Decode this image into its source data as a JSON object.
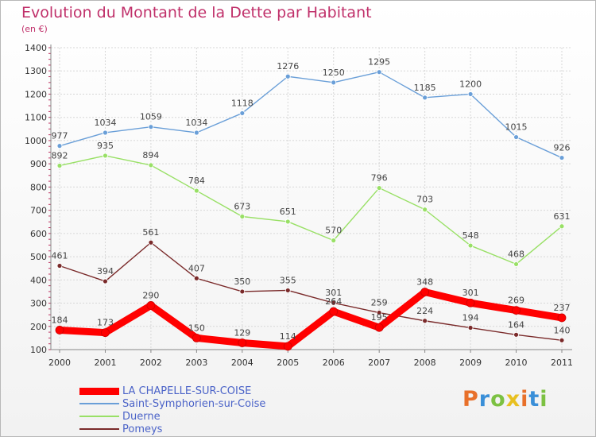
{
  "title": "Evolution du Montant de la Dette par Habitant",
  "unit_label": "(en €)",
  "brand": "Proxiti",
  "brand_colors": [
    "#e8702a",
    "#3a8fd8",
    "#7cc142",
    "#e8c020"
  ],
  "chart_data": {
    "type": "line",
    "categories": [
      "2000",
      "2001",
      "2002",
      "2003",
      "2004",
      "2005",
      "2006",
      "2007",
      "2008",
      "2009",
      "2010",
      "2011"
    ],
    "ylim": [
      100,
      1400
    ],
    "yticks": [
      100,
      200,
      300,
      400,
      500,
      600,
      700,
      800,
      900,
      1000,
      1100,
      1200,
      1300,
      1400
    ],
    "ytick_labels": [
      "100",
      "200",
      "300",
      "400",
      "500",
      "600",
      "700",
      "800",
      "900",
      "1000",
      "1100",
      "1200",
      "1300",
      "1400"
    ],
    "grid": true,
    "legend_position": "bottom-left",
    "series": [
      {
        "name": "LA CHAPELLE-SUR-COISE",
        "color": "#ff0000",
        "bold": true,
        "values": [
          184,
          173,
          290,
          150,
          129,
          114,
          264,
          195,
          348,
          301,
          269,
          237
        ]
      },
      {
        "name": "Saint-Symphorien-sur-Coise",
        "color": "#6a9fd8",
        "bold": false,
        "values": [
          977,
          1034,
          1059,
          1034,
          1118,
          1276,
          1250,
          1295,
          1185,
          1200,
          1015,
          926
        ]
      },
      {
        "name": "Duerne",
        "color": "#99e066",
        "bold": false,
        "values": [
          892,
          935,
          894,
          784,
          673,
          651,
          570,
          796,
          703,
          548,
          468,
          631
        ]
      },
      {
        "name": "Pomeys",
        "color": "#7a2a2a",
        "bold": false,
        "values": [
          461,
          394,
          561,
          407,
          350,
          355,
          301,
          259,
          224,
          194,
          164,
          140
        ]
      }
    ]
  }
}
